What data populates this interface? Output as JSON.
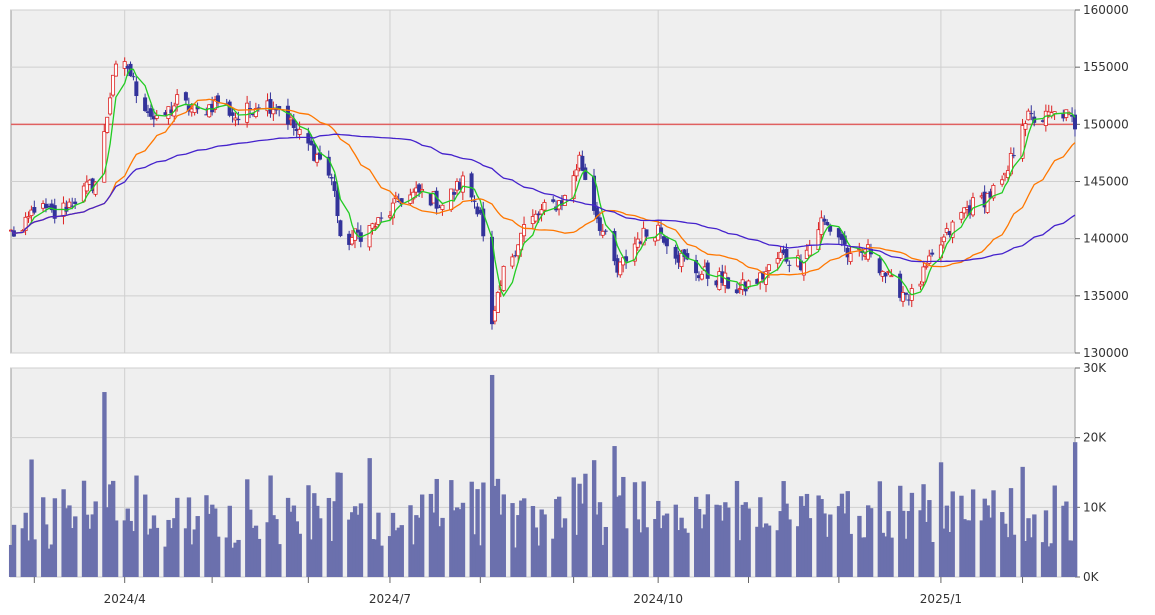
{
  "chart_data": [
    {
      "type": "candlestick",
      "title": "",
      "ylim": [
        130000,
        160000
      ],
      "yticks": [
        130000,
        135000,
        140000,
        145000,
        150000,
        155000,
        160000
      ],
      "yticks_labels": [
        "130000",
        "135000",
        "140000",
        "145000",
        "150000",
        "155000",
        "160000"
      ],
      "reference_line": 150000,
      "grid": true,
      "anchors": [
        [
          "2024-02-26",
          140500
        ],
        [
          "2024-03-01",
          142800
        ],
        [
          "2024-03-08",
          142000
        ],
        [
          "2024-03-15",
          143500
        ],
        [
          "2024-03-22",
          145000
        ],
        [
          "2024-03-25",
          149000
        ],
        [
          "2024-03-28",
          154500
        ],
        [
          "2024-04-02",
          155000
        ],
        [
          "2024-04-05",
          153000
        ],
        [
          "2024-04-12",
          150000
        ],
        [
          "2024-04-19",
          152000
        ],
        [
          "2024-04-26",
          151000
        ],
        [
          "2024-05-03",
          152000
        ],
        [
          "2024-05-10",
          150500
        ],
        [
          "2024-05-17",
          152000
        ],
        [
          "2024-05-24",
          151500
        ],
        [
          "2024-05-31",
          149000
        ],
        [
          "2024-06-07",
          147000
        ],
        [
          "2024-06-12",
          144500
        ],
        [
          "2024-06-14",
          139500
        ],
        [
          "2024-06-21",
          140500
        ],
        [
          "2024-06-28",
          141500
        ],
        [
          "2024-07-05",
          143500
        ],
        [
          "2024-07-12",
          144000
        ],
        [
          "2024-07-19",
          143000
        ],
        [
          "2024-07-26",
          145000
        ],
        [
          "2024-08-01",
          142500
        ],
        [
          "2024-08-05",
          132000
        ],
        [
          "2024-08-09",
          137000
        ],
        [
          "2024-08-16",
          141000
        ],
        [
          "2024-08-23",
          142500
        ],
        [
          "2024-08-30",
          143500
        ],
        [
          "2024-09-04",
          147000
        ],
        [
          "2024-09-10",
          142000
        ],
        [
          "2024-09-17",
          137000
        ],
        [
          "2024-09-24",
          140000
        ],
        [
          "2024-10-01",
          141000
        ],
        [
          "2024-10-08",
          138500
        ],
        [
          "2024-10-15",
          137000
        ],
        [
          "2024-10-22",
          136500
        ],
        [
          "2024-10-29",
          135500
        ],
        [
          "2024-11-05",
          136500
        ],
        [
          "2024-11-12",
          138500
        ],
        [
          "2024-11-19",
          138000
        ],
        [
          "2024-11-26",
          141500
        ],
        [
          "2024-12-03",
          140000
        ],
        [
          "2024-12-06",
          138000
        ],
        [
          "2024-12-13",
          139000
        ],
        [
          "2024-12-20",
          136000
        ],
        [
          "2024-12-27",
          135000
        ],
        [
          "2025-01-06",
          139500
        ],
        [
          "2025-01-14",
          142500
        ],
        [
          "2025-01-21",
          143500
        ],
        [
          "2025-01-28",
          145000
        ],
        [
          "2025-02-03",
          150500
        ],
        [
          "2025-02-10",
          150500
        ],
        [
          "2025-02-17",
          151000
        ],
        [
          "2025-02-21",
          150000
        ]
      ],
      "moving_averages": [
        {
          "color": "#22cc22",
          "window": 5
        },
        {
          "color": "#ff7700",
          "window": 25
        },
        {
          "color": "#4422cc",
          "window": 75
        }
      ],
      "colors": {
        "up": "#dd2222",
        "down": "#33339a",
        "reference": "#e06060",
        "background": "#efefef",
        "grid": "#cfcfcf"
      }
    },
    {
      "type": "bar",
      "ylim": [
        0,
        30000
      ],
      "yticks": [
        0,
        10000,
        20000,
        30000
      ],
      "yticks_labels": [
        "0K",
        "10K",
        "20K",
        "30K"
      ],
      "color": "#6b70ad",
      "grid": true
    }
  ],
  "x_axis": {
    "range": [
      "2024-02-22",
      "2025-02-21"
    ],
    "major": [
      {
        "date": "2024-04-01",
        "label": "2024/4"
      },
      {
        "date": "2024-07-01",
        "label": "2024/7"
      },
      {
        "date": "2024-10-01",
        "label": "2024/10"
      },
      {
        "date": "2025-01-06",
        "label": "2025/1"
      }
    ],
    "minor": [
      "2024-03-01",
      "2024-05-01",
      "2024-06-03",
      "2024-08-01",
      "2024-09-02",
      "2024-11-01",
      "2024-12-02",
      "2025-02-03"
    ]
  }
}
